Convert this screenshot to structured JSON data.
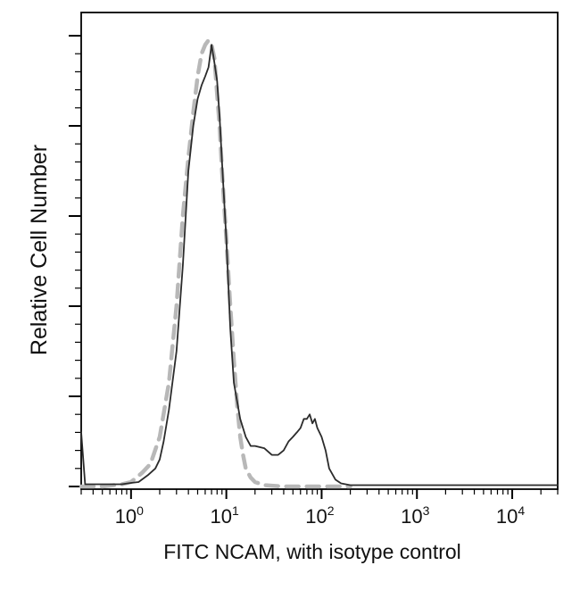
{
  "chart_data": {
    "type": "line",
    "title": "",
    "xlabel": "FITC NCAM, with isotype control",
    "ylabel": "Relative Cell Number",
    "x_scale": "log",
    "xlim": [
      0.3,
      30000
    ],
    "ylim": [
      0,
      100
    ],
    "grid": false,
    "x_ticks": [
      {
        "value": 1,
        "base": "10",
        "exp": "0"
      },
      {
        "value": 10,
        "base": "10",
        "exp": "1"
      },
      {
        "value": 100,
        "base": "10",
        "exp": "2"
      },
      {
        "value": 1000,
        "base": "10",
        "exp": "3"
      },
      {
        "value": 10000,
        "base": "10",
        "exp": "4"
      }
    ],
    "series": [
      {
        "color": "#2b2b2b",
        "style": "solid",
        "x": [
          0.3,
          0.33,
          0.4,
          0.5,
          0.6,
          0.8,
          1.0,
          1.2,
          1.5,
          1.8,
          2.0,
          2.2,
          2.5,
          3.0,
          3.5,
          4.0,
          4.5,
          5.0,
          5.5,
          6.0,
          6.5,
          7.0,
          7.5,
          8.0,
          8.5,
          9.0,
          10,
          11,
          12,
          14,
          16,
          18,
          20,
          25,
          30,
          35,
          40,
          45,
          50,
          55,
          60,
          65,
          70,
          75,
          80,
          85,
          90,
          100,
          110,
          120,
          140,
          160,
          200,
          300,
          1000,
          10000,
          30000
        ],
        "y": [
          12,
          0.5,
          0.5,
          0.5,
          0.5,
          0.5,
          0.8,
          1,
          2.5,
          4,
          6,
          10,
          17,
          30,
          49,
          70,
          80,
          86,
          89,
          91,
          93,
          98,
          94,
          90,
          82,
          72,
          55,
          35,
          23,
          15,
          11,
          9,
          9,
          8.5,
          7,
          7,
          8,
          10,
          11,
          12,
          13,
          15,
          15,
          16,
          14,
          15,
          13,
          11,
          8,
          4,
          1.5,
          0.7,
          0.3,
          0.3,
          0.3,
          0.3,
          0.3
        ]
      },
      {
        "color": "#b8b8b8",
        "style": "dashed",
        "x": [
          0.3,
          0.5,
          0.8,
          1.0,
          1.3,
          1.6,
          2.0,
          2.5,
          3.0,
          3.5,
          4.0,
          4.5,
          5.0,
          5.5,
          6.0,
          6.5,
          7.0,
          7.5,
          8.0,
          8.5,
          9.0,
          10,
          11,
          12,
          13,
          14,
          15,
          16,
          18,
          20,
          25,
          40,
          100,
          200
        ],
        "y": [
          0,
          0,
          0.5,
          1,
          3,
          5,
          11,
          23,
          40,
          60,
          73,
          83,
          91,
          96,
          98,
          99,
          98,
          95,
          87,
          80,
          70,
          55,
          40,
          28,
          18,
          11,
          7,
          4,
          2,
          1,
          0.3,
          0,
          0,
          0
        ]
      }
    ]
  }
}
